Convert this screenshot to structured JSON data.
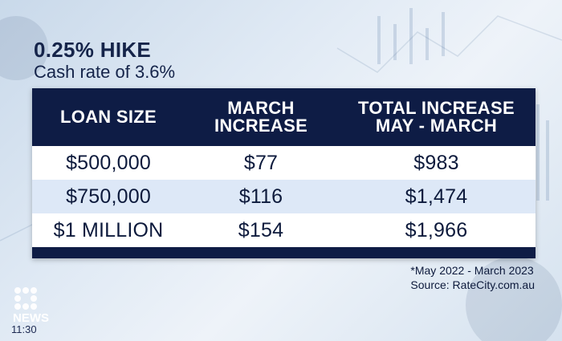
{
  "heading": {
    "title": "0.25% HIKE",
    "subtitle": "Cash rate of 3.6%"
  },
  "table": {
    "headers": [
      [
        "LOAN SIZE"
      ],
      [
        "MARCH",
        "INCREASE"
      ],
      [
        "TOTAL INCREASE",
        "MAY - MARCH"
      ]
    ],
    "rows": [
      [
        "$500,000",
        "$77",
        "$983"
      ],
      [
        "$750,000",
        "$116",
        "$1,474"
      ],
      [
        "$1 MILLION",
        "$154",
        "$1,966"
      ]
    ]
  },
  "footnote": {
    "period": "*May 2022 - March 2023",
    "source": "Source: RateCity.com.au"
  },
  "broadcast": {
    "logo_text": "NEWS",
    "time": "11:30"
  },
  "colors": {
    "header_bg": "#0e1c45",
    "text_dark": "#0d1a3c",
    "row_alt": "#dde8f7"
  }
}
